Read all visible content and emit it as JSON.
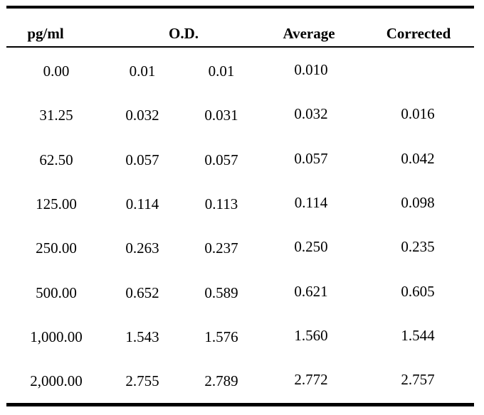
{
  "table": {
    "headers": {
      "concentration": "pg/ml",
      "od": "O.D.",
      "average": "Average",
      "corrected": "Corrected"
    },
    "rows": [
      {
        "concentration": "0.00",
        "od1": "0.01",
        "od2": "0.01",
        "average": "0.010",
        "corrected": ""
      },
      {
        "concentration": "31.25",
        "od1": "0.032",
        "od2": "0.031",
        "average": "0.032",
        "corrected": "0.016"
      },
      {
        "concentration": "62.50",
        "od1": "0.057",
        "od2": "0.057",
        "average": "0.057",
        "corrected": "0.042"
      },
      {
        "concentration": "125.00",
        "od1": "0.114",
        "od2": "0.113",
        "average": "0.114",
        "corrected": "0.098"
      },
      {
        "concentration": "250.00",
        "od1": "0.263",
        "od2": "0.237",
        "average": "0.250",
        "corrected": "0.235"
      },
      {
        "concentration": "500.00",
        "od1": "0.652",
        "od2": "0.589",
        "average": "0.621",
        "corrected": "0.605"
      },
      {
        "concentration": "1,000.00",
        "od1": "1.543",
        "od2": "1.576",
        "average": "1.560",
        "corrected": "1.544"
      },
      {
        "concentration": "2,000.00",
        "od1": "2.755",
        "od2": "2.789",
        "average": "2.772",
        "corrected": "2.757"
      }
    ]
  }
}
